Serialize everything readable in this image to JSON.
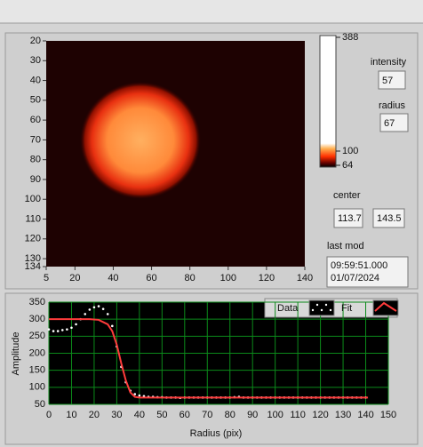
{
  "image_plot": {
    "xticks": [
      5,
      20,
      40,
      60,
      80,
      100,
      120,
      140
    ],
    "xlim": [
      5,
      140
    ],
    "yticks": [
      20,
      30,
      40,
      50,
      60,
      70,
      80,
      90,
      100,
      110,
      120,
      130,
      134
    ],
    "ylim": [
      20,
      134
    ]
  },
  "colorbar": {
    "lim": [
      64,
      388
    ],
    "ticks": [
      388,
      100,
      64
    ]
  },
  "indicators": {
    "intensity": {
      "label": "intensity",
      "value": "57"
    },
    "radius": {
      "label": "radius",
      "value": "67"
    },
    "center": {
      "label": "center",
      "values": [
        "113.7",
        "143.5"
      ]
    },
    "last_mod": {
      "label": "last mod",
      "lines": [
        "09:59:51.000",
        "01/07/2024"
      ]
    }
  },
  "chart_data": {
    "type": "scatter",
    "xlabel": "Radius (pix)",
    "ylabel": "Amplitude",
    "xlim": [
      0,
      150
    ],
    "xticks": [
      0,
      10,
      20,
      30,
      40,
      50,
      60,
      70,
      80,
      90,
      100,
      110,
      120,
      130,
      140,
      150
    ],
    "ylim": [
      50,
      350
    ],
    "yticks": [
      50,
      100,
      150,
      200,
      250,
      300,
      350
    ],
    "grid": true,
    "series": [
      {
        "name": "Data",
        "color": "#ffffff",
        "style": "points",
        "x": [
          0,
          2,
          4,
          6,
          8,
          10,
          12,
          14,
          16,
          18,
          20,
          22,
          24,
          26,
          28,
          30,
          32,
          34,
          36,
          38,
          40,
          42,
          44,
          46,
          48,
          50,
          52,
          54,
          56,
          58,
          60,
          62,
          64,
          66,
          68,
          70,
          72,
          74,
          76,
          78,
          80,
          82,
          84,
          86,
          88,
          90,
          92,
          94,
          96,
          98,
          100,
          102,
          104,
          106,
          108,
          110,
          112,
          114,
          116,
          118,
          120,
          122,
          124,
          126,
          128,
          130,
          132,
          134,
          136,
          138,
          140
        ],
        "values": [
          270,
          265,
          265,
          268,
          270,
          275,
          285,
          300,
          315,
          328,
          335,
          338,
          330,
          315,
          280,
          220,
          160,
          115,
          90,
          80,
          76,
          74,
          72,
          72,
          71,
          71,
          70,
          70,
          70,
          69,
          70,
          70,
          70,
          70,
          70,
          70,
          70,
          70,
          70,
          70,
          70,
          71,
          72,
          70,
          70,
          70,
          70,
          70,
          70,
          70,
          70,
          70,
          70,
          70,
          70,
          70,
          70,
          70,
          70,
          70,
          70,
          70,
          70,
          70,
          70,
          70,
          70,
          70,
          70,
          70,
          70
        ]
      },
      {
        "name": "Fit",
        "color": "#ff3b3b",
        "style": "line",
        "x": [
          0,
          18,
          22,
          26,
          28,
          30,
          32,
          34,
          36,
          38,
          40,
          141
        ],
        "values": [
          300,
          300,
          298,
          285,
          265,
          225,
          170,
          120,
          85,
          72,
          70,
          70
        ]
      }
    ]
  }
}
